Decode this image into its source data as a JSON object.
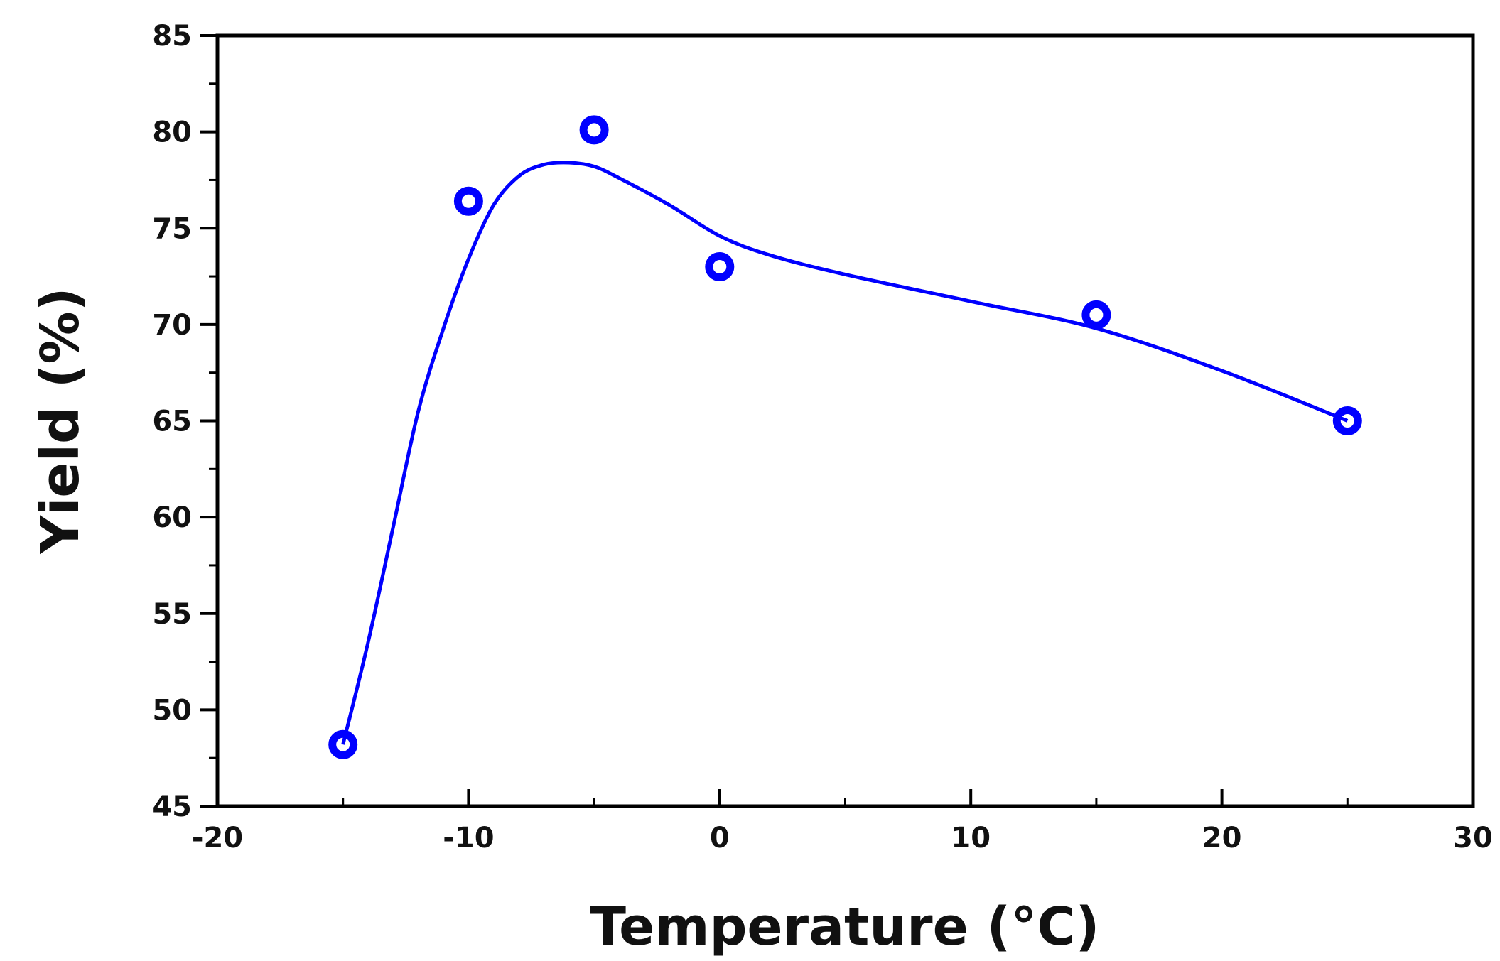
{
  "chart_data": {
    "type": "scatter",
    "title": "",
    "xlabel": "Temperature (°C)",
    "ylabel": "Yield (%)",
    "xlim": [
      -20,
      30
    ],
    "ylim": [
      45,
      85
    ],
    "x_ticks": [
      -20,
      -10,
      0,
      10,
      20,
      30
    ],
    "y_ticks": [
      45,
      50,
      55,
      60,
      65,
      70,
      75,
      80,
      85
    ],
    "x_minor_step": 5,
    "y_minor_step": 2.5,
    "grid": false,
    "legend": "none",
    "series": [
      {
        "marker": "circle",
        "color": "#0000ff",
        "x": [
          -15,
          -10,
          -5,
          0,
          15,
          25
        ],
        "y": [
          48.2,
          76.4,
          80.1,
          73.0,
          70.5,
          65.0
        ]
      }
    ],
    "fit_curve": {
      "color": "#0000ff",
      "x": [
        -15,
        -14,
        -13,
        -12,
        -11,
        -10,
        -9,
        -8,
        -7,
        -6,
        -5,
        -4,
        -2,
        0,
        2,
        5,
        10,
        15,
        20,
        25
      ],
      "y": [
        48.2,
        53.5,
        59.5,
        65.5,
        69.8,
        73.4,
        76.2,
        77.7,
        78.3,
        78.4,
        78.2,
        77.6,
        76.2,
        74.6,
        73.6,
        72.6,
        71.2,
        69.8,
        67.6,
        65.0
      ]
    }
  }
}
